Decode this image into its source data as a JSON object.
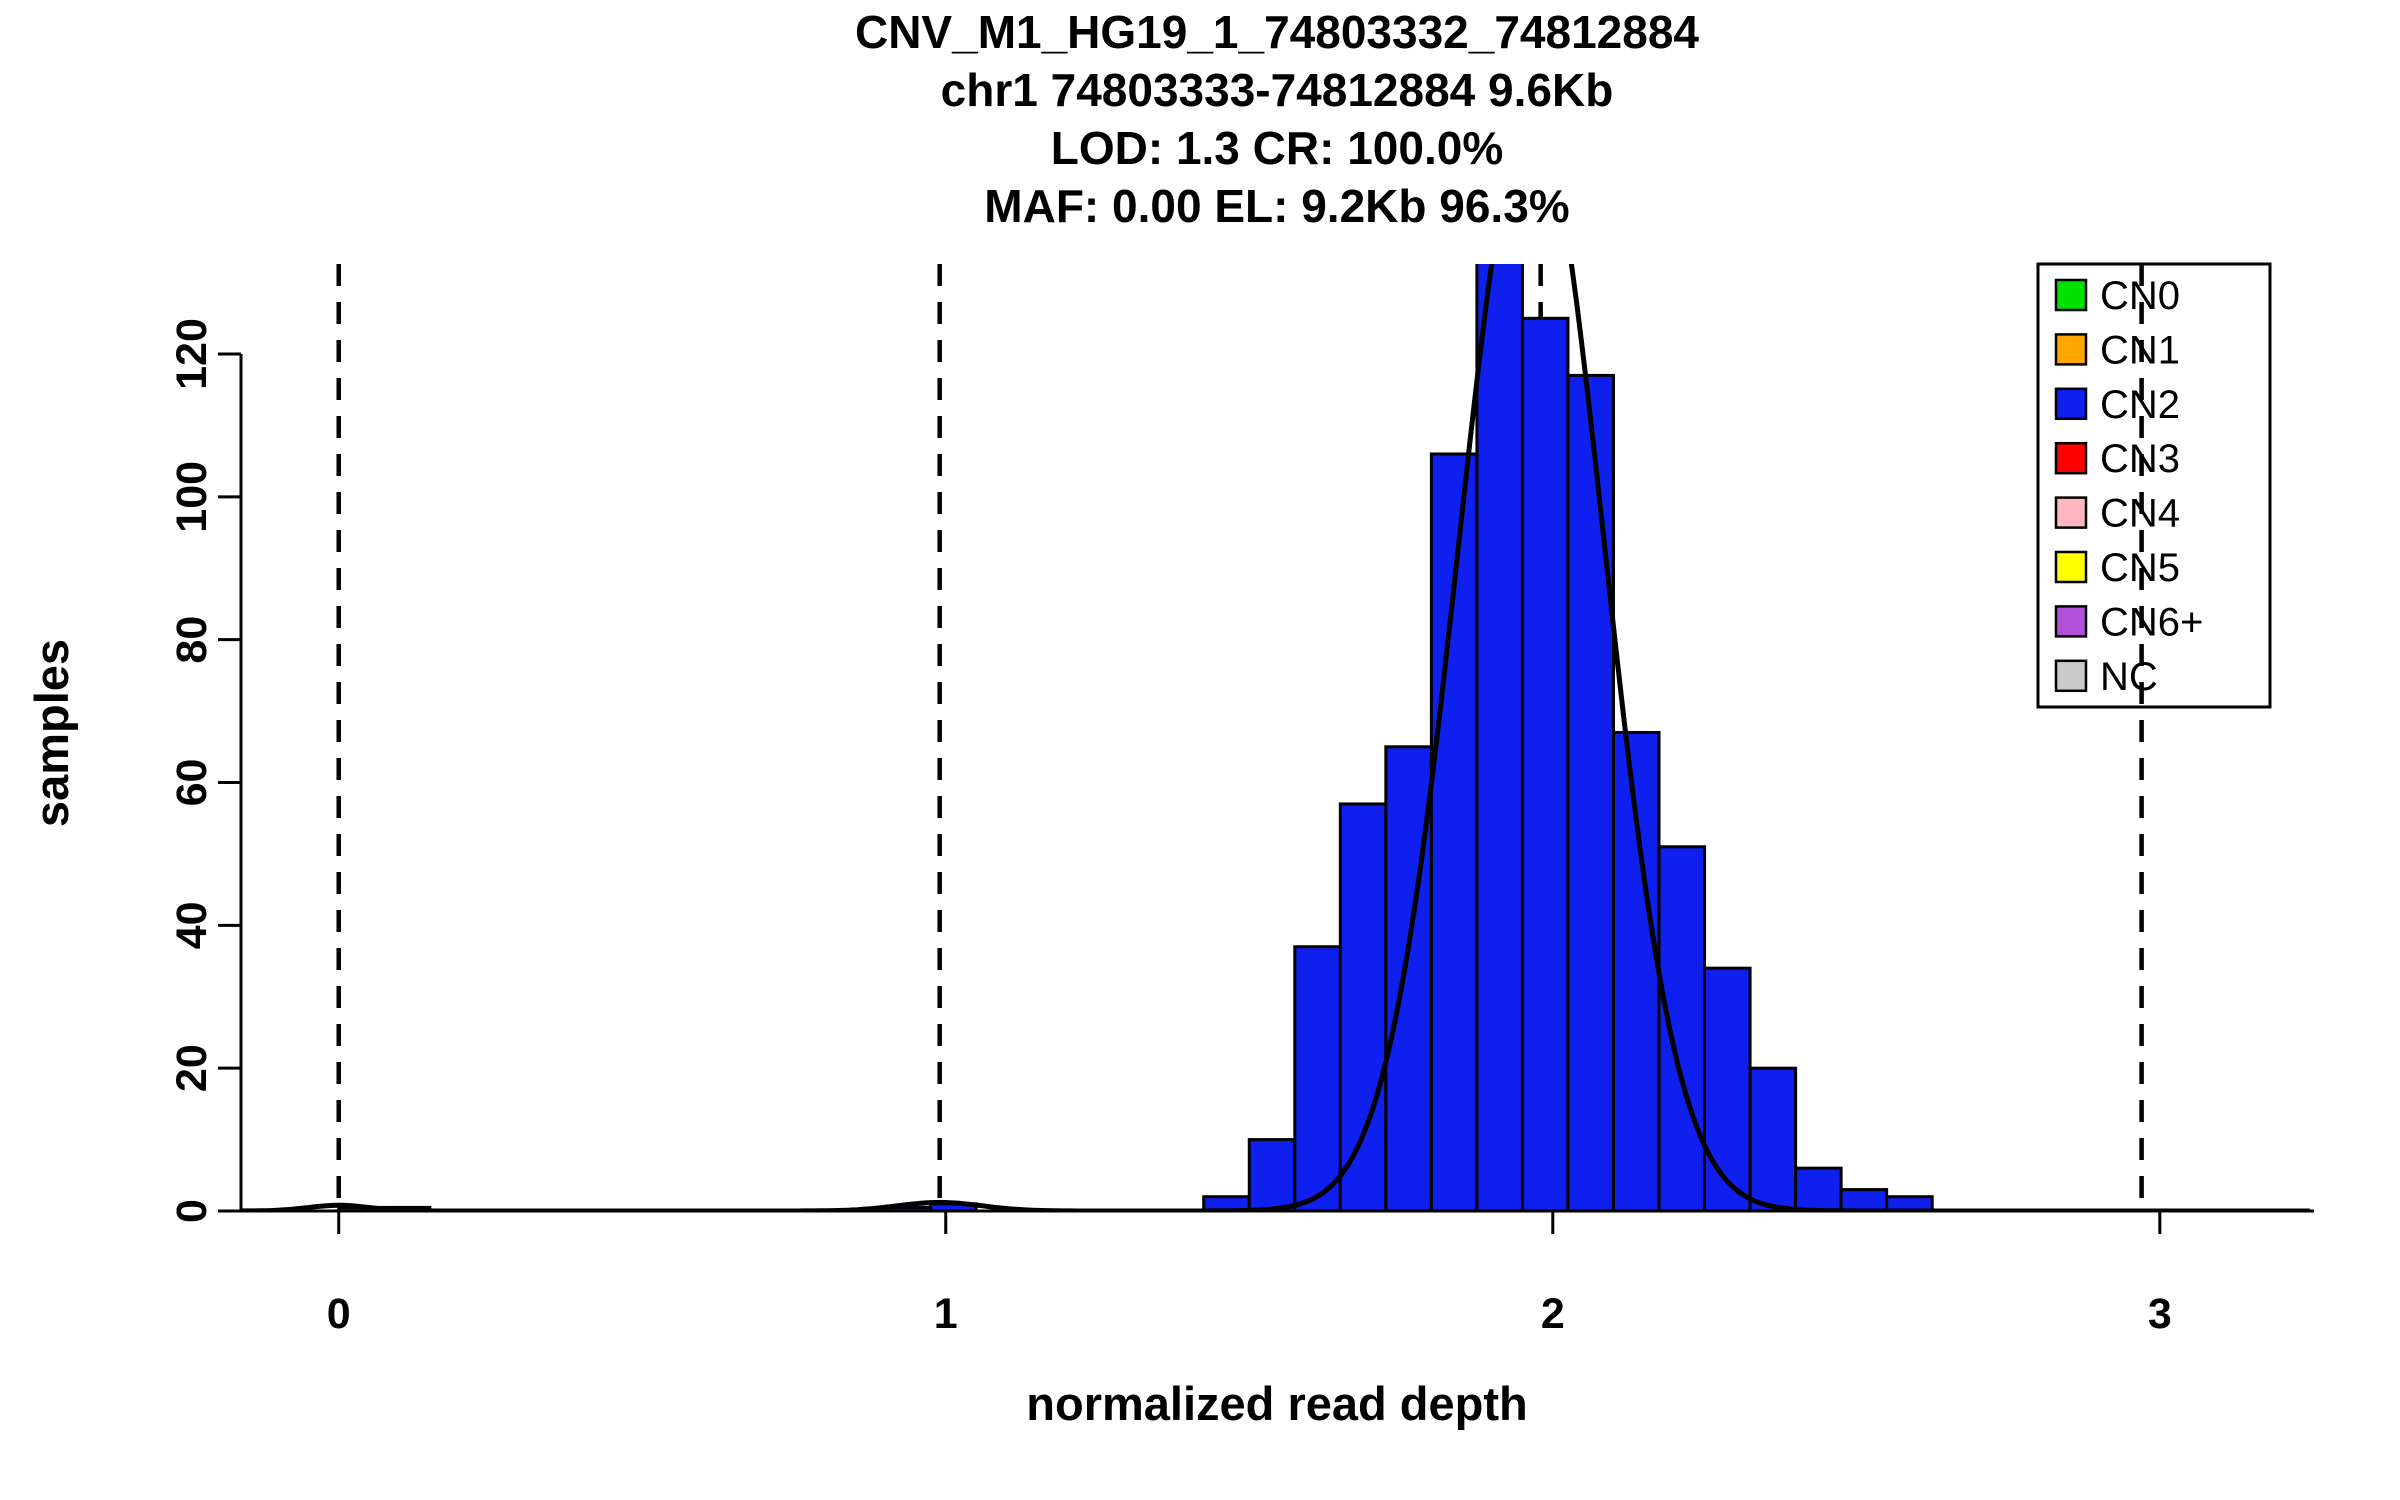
{
  "title": {
    "line1": "CNV_M1_HG19_1_74803332_74812884",
    "line2": "chr1 74803333-74812884 9.6Kb",
    "line3": "LOD: 1.3 CR: 100.0%",
    "line4": "MAF: 0.00 EL: 9.2Kb 96.3%"
  },
  "chart_data": {
    "type": "bar",
    "subtype": "histogram-with-density-fit",
    "title": "CNV_M1_HG19_1_74803332_74812884",
    "xlabel": "normalized read depth",
    "ylabel": "samples",
    "x_ticks": [
      0,
      1,
      2,
      3
    ],
    "y_ticks": [
      0,
      20,
      40,
      60,
      80,
      100,
      120
    ],
    "xlim": [
      -0.161,
      3.254
    ],
    "ylim": [
      0,
      132.6
    ],
    "grid": false,
    "bin_width": 0.075,
    "bins": [
      {
        "x": 0.0,
        "count": 0.5
      },
      {
        "x": 0.075,
        "count": 0.5
      },
      {
        "x": 0.9,
        "count": 0.5
      },
      {
        "x": 0.975,
        "count": 1
      },
      {
        "x": 1.425,
        "count": 2
      },
      {
        "x": 1.5,
        "count": 10
      },
      {
        "x": 1.575,
        "count": 37
      },
      {
        "x": 1.65,
        "count": 57
      },
      {
        "x": 1.725,
        "count": 65
      },
      {
        "x": 1.8,
        "count": 106
      },
      {
        "x": 1.875,
        "count": 137
      },
      {
        "x": 1.95,
        "count": 125
      },
      {
        "x": 2.025,
        "count": 117
      },
      {
        "x": 2.1,
        "count": 67
      },
      {
        "x": 2.175,
        "count": 51
      },
      {
        "x": 2.25,
        "count": 34
      },
      {
        "x": 2.325,
        "count": 20
      },
      {
        "x": 2.4,
        "count": 6
      },
      {
        "x": 2.475,
        "count": 3
      },
      {
        "x": 2.55,
        "count": 2
      }
    ],
    "dashed_lines_x": [
      0.0,
      0.99,
      1.98,
      2.97
    ],
    "fit_curve": {
      "color": "#000000",
      "components": [
        {
          "mean": 1.965,
          "sd": 0.12,
          "peak": 154
        },
        {
          "mean": 0.99,
          "sd": 0.07,
          "peak": 1.2
        },
        {
          "mean": 0.0,
          "sd": 0.05,
          "peak": 0.8
        }
      ]
    },
    "colors": {
      "bar_fill": "#0f1fee",
      "bar_stroke": "#000000",
      "axis": "#000000"
    },
    "legend": {
      "position": "top-right",
      "entries": [
        {
          "label": "CN0",
          "color": "#00e100"
        },
        {
          "label": "CN1",
          "color": "#ffa500"
        },
        {
          "label": "CN2",
          "color": "#0f1fee"
        },
        {
          "label": "CN3",
          "color": "#ff0000"
        },
        {
          "label": "CN4",
          "color": "#ffb6c1"
        },
        {
          "label": "CN5",
          "color": "#ffff00"
        },
        {
          "label": "CN6+",
          "color": "#b04fd8"
        },
        {
          "label": "NC",
          "color": "#c9c9c9"
        }
      ]
    }
  }
}
